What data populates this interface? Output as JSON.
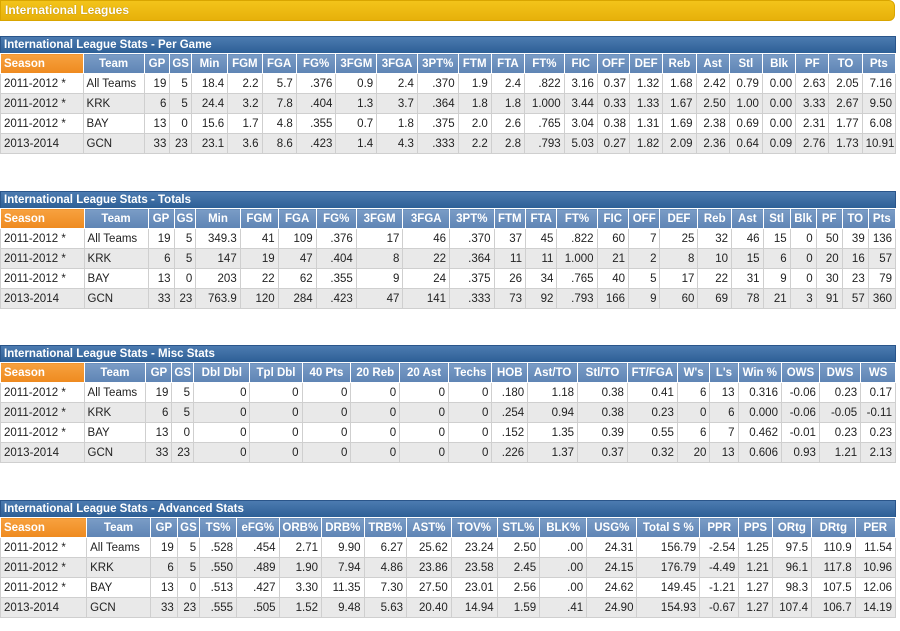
{
  "banner": "International Leagues",
  "per_game": {
    "title": "International League Stats - Per Game",
    "columns": [
      "Season",
      "Team",
      "GP",
      "GS",
      "Min",
      "FGM",
      "FGA",
      "FG%",
      "3FGM",
      "3FGA",
      "3PT%",
      "FTM",
      "FTA",
      "FT%",
      "FIC",
      "OFF",
      "DEF",
      "Reb",
      "Ast",
      "Stl",
      "Blk",
      "PF",
      "TO",
      "Pts"
    ],
    "rows": [
      [
        "2011-2012 *",
        "All Teams",
        "19",
        "5",
        "18.4",
        "2.2",
        "5.7",
        ".376",
        "0.9",
        "2.4",
        ".370",
        "1.9",
        "2.4",
        ".822",
        "3.16",
        "0.37",
        "1.32",
        "1.68",
        "2.42",
        "0.79",
        "0.00",
        "2.63",
        "2.05",
        "7.16"
      ],
      [
        "2011-2012 *",
        "KRK",
        "6",
        "5",
        "24.4",
        "3.2",
        "7.8",
        ".404",
        "1.3",
        "3.7",
        ".364",
        "1.8",
        "1.8",
        "1.000",
        "3.44",
        "0.33",
        "1.33",
        "1.67",
        "2.50",
        "1.00",
        "0.00",
        "3.33",
        "2.67",
        "9.50"
      ],
      [
        "2011-2012 *",
        "BAY",
        "13",
        "0",
        "15.6",
        "1.7",
        "4.8",
        ".355",
        "0.7",
        "1.8",
        ".375",
        "2.0",
        "2.6",
        ".765",
        "3.04",
        "0.38",
        "1.31",
        "1.69",
        "2.38",
        "0.69",
        "0.00",
        "2.31",
        "1.77",
        "6.08"
      ],
      [
        "2013-2014",
        "GCN",
        "33",
        "23",
        "23.1",
        "3.6",
        "8.6",
        ".423",
        "1.4",
        "4.3",
        ".333",
        "2.2",
        "2.8",
        ".793",
        "5.03",
        "0.27",
        "1.82",
        "2.09",
        "2.36",
        "0.64",
        "0.09",
        "2.76",
        "1.73",
        "10.91"
      ]
    ]
  },
  "totals": {
    "title": "International League Stats - Totals",
    "columns": [
      "Season",
      "Team",
      "GP",
      "GS",
      "Min",
      "FGM",
      "FGA",
      "FG%",
      "3FGM",
      "3FGA",
      "3PT%",
      "FTM",
      "FTA",
      "FT%",
      "FIC",
      "OFF",
      "DEF",
      "Reb",
      "Ast",
      "Stl",
      "Blk",
      "PF",
      "TO",
      "Pts"
    ],
    "rows": [
      [
        "2011-2012 *",
        "All Teams",
        "19",
        "5",
        "349.3",
        "41",
        "109",
        ".376",
        "17",
        "46",
        ".370",
        "37",
        "45",
        ".822",
        "60",
        "7",
        "25",
        "32",
        "46",
        "15",
        "0",
        "50",
        "39",
        "136"
      ],
      [
        "2011-2012 *",
        "KRK",
        "6",
        "5",
        "147",
        "19",
        "47",
        ".404",
        "8",
        "22",
        ".364",
        "11",
        "11",
        "1.000",
        "21",
        "2",
        "8",
        "10",
        "15",
        "6",
        "0",
        "20",
        "16",
        "57"
      ],
      [
        "2011-2012 *",
        "BAY",
        "13",
        "0",
        "203",
        "22",
        "62",
        ".355",
        "9",
        "24",
        ".375",
        "26",
        "34",
        ".765",
        "40",
        "5",
        "17",
        "22",
        "31",
        "9",
        "0",
        "30",
        "23",
        "79"
      ],
      [
        "2013-2014",
        "GCN",
        "33",
        "23",
        "763.9",
        "120",
        "284",
        ".423",
        "47",
        "141",
        ".333",
        "73",
        "92",
        ".793",
        "166",
        "9",
        "60",
        "69",
        "78",
        "21",
        "3",
        "91",
        "57",
        "360"
      ]
    ]
  },
  "misc": {
    "title": "International League Stats - Misc Stats",
    "columns": [
      "Season",
      "Team",
      "GP",
      "GS",
      "Dbl Dbl",
      "Tpl Dbl",
      "40 Pts",
      "20 Reb",
      "20 Ast",
      "Techs",
      "HOB",
      "Ast/TO",
      "Stl/TO",
      "FT/FGA",
      "W's",
      "L's",
      "Win %",
      "OWS",
      "DWS",
      "WS"
    ],
    "rows": [
      [
        "2011-2012 *",
        "All Teams",
        "19",
        "5",
        "0",
        "0",
        "0",
        "0",
        "0",
        "0",
        ".180",
        "1.18",
        "0.38",
        "0.41",
        "6",
        "13",
        "0.316",
        "-0.06",
        "0.23",
        "0.17"
      ],
      [
        "2011-2012 *",
        "KRK",
        "6",
        "5",
        "0",
        "0",
        "0",
        "0",
        "0",
        "0",
        ".254",
        "0.94",
        "0.38",
        "0.23",
        "0",
        "6",
        "0.000",
        "-0.06",
        "-0.05",
        "-0.11"
      ],
      [
        "2011-2012 *",
        "BAY",
        "13",
        "0",
        "0",
        "0",
        "0",
        "0",
        "0",
        "0",
        ".152",
        "1.35",
        "0.39",
        "0.55",
        "6",
        "7",
        "0.462",
        "-0.01",
        "0.23",
        "0.23"
      ],
      [
        "2013-2014",
        "GCN",
        "33",
        "23",
        "0",
        "0",
        "0",
        "0",
        "0",
        "0",
        ".226",
        "1.37",
        "0.37",
        "0.32",
        "20",
        "13",
        "0.606",
        "0.93",
        "1.21",
        "2.13"
      ]
    ]
  },
  "advanced": {
    "title": "International League Stats - Advanced Stats",
    "columns": [
      "Season",
      "Team",
      "GP",
      "GS",
      "TS%",
      "eFG%",
      "ORB%",
      "DRB%",
      "TRB%",
      "AST%",
      "TOV%",
      "STL%",
      "BLK%",
      "USG%",
      "Total S %",
      "PPR",
      "PPS",
      "ORtg",
      "DRtg",
      "PER"
    ],
    "rows": [
      [
        "2011-2012 *",
        "All Teams",
        "19",
        "5",
        ".528",
        ".454",
        "2.71",
        "9.90",
        "6.27",
        "25.62",
        "23.24",
        "2.50",
        ".00",
        "24.31",
        "156.79",
        "-2.54",
        "1.25",
        "97.5",
        "110.9",
        "11.54"
      ],
      [
        "2011-2012 *",
        "KRK",
        "6",
        "5",
        ".550",
        ".489",
        "1.90",
        "7.94",
        "4.86",
        "23.86",
        "23.58",
        "2.45",
        ".00",
        "24.15",
        "176.79",
        "-4.49",
        "1.21",
        "96.1",
        "117.8",
        "10.96"
      ],
      [
        "2011-2012 *",
        "BAY",
        "13",
        "0",
        ".513",
        ".427",
        "3.30",
        "11.35",
        "7.30",
        "27.50",
        "23.01",
        "2.56",
        ".00",
        "24.62",
        "149.45",
        "-1.21",
        "1.27",
        "98.3",
        "107.5",
        "12.06"
      ],
      [
        "2013-2014",
        "GCN",
        "33",
        "23",
        ".555",
        ".505",
        "1.52",
        "9.48",
        "5.63",
        "20.40",
        "14.94",
        "1.59",
        ".41",
        "24.90",
        "154.93",
        "-0.67",
        "1.27",
        "107.4",
        "106.7",
        "14.19"
      ]
    ]
  },
  "colors": {
    "banner": "#e9b20c",
    "section_header": "#2d5f96",
    "column_header": "#6a8fbf",
    "season_header": "#f0902a",
    "row_alt": "#e9e9e9"
  }
}
